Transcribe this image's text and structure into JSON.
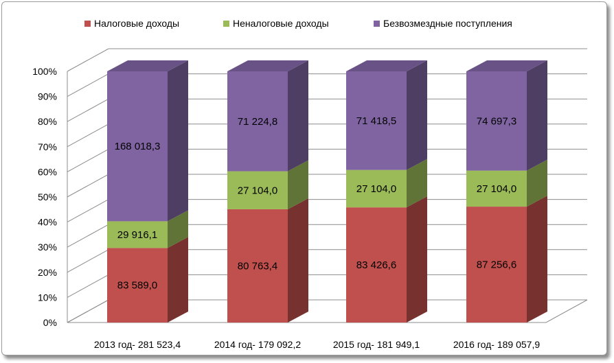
{
  "chart_data": {
    "type": "bar",
    "stacked": "percent",
    "three_d": true,
    "title": "",
    "xlabel": "",
    "ylabel": "",
    "ylim": [
      0,
      100
    ],
    "y_ticks": [
      "0%",
      "10%",
      "20%",
      "30%",
      "40%",
      "50%",
      "60%",
      "70%",
      "80%",
      "90%",
      "100%"
    ],
    "grid": true,
    "legend_position": "top",
    "categories": [
      "2013 год- 281 523,4",
      "2014 год- 179 092,2",
      "2015 год- 181 949,1",
      "2016 год- 189 057,9"
    ],
    "series": [
      {
        "name": "Налоговые доходы",
        "color": "#c0504d",
        "values": [
          83589.0,
          80763.4,
          83426.6,
          87256.6
        ],
        "labels": [
          "83 589,0",
          "80 763,4",
          "83 426,6",
          "87 256,6"
        ]
      },
      {
        "name": "Неналоговые доходы",
        "color": "#9bbb59",
        "values": [
          29916.1,
          27104.0,
          27104.0,
          27104.0
        ],
        "labels": [
          "29 916,1",
          "27 104,0",
          "27 104,0",
          "27 104,0"
        ]
      },
      {
        "name": "Безвозмездные поступления",
        "color": "#8064a2",
        "values": [
          168018.3,
          71224.8,
          71418.5,
          74697.3
        ],
        "labels": [
          "168 018,3",
          "71 224,8",
          "71 418,5",
          "74 697,3"
        ]
      }
    ]
  }
}
